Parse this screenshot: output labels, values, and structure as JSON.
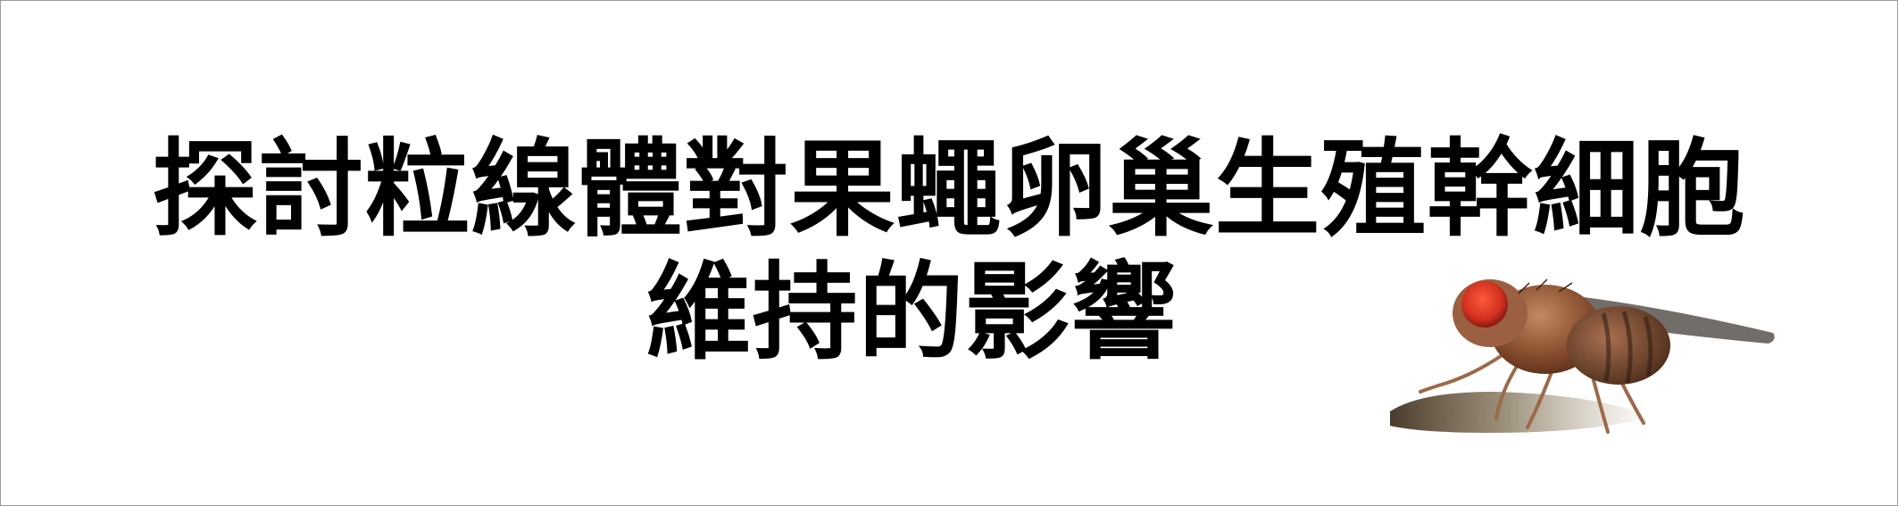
{
  "title": {
    "line1": "探討粒線體對果蠅卵巢生殖幹細胞",
    "line2": "維持的影響"
  },
  "image": {
    "icon": "fruit-fly-photo",
    "colors": {
      "body": "#8a5030",
      "eye": "#d0301e",
      "wing": "#5a5450",
      "shadow": "#5a4a30"
    }
  }
}
